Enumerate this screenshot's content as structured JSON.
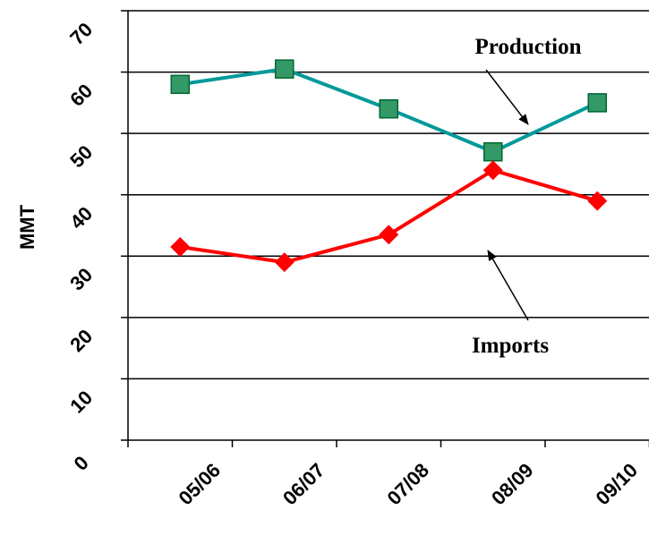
{
  "chart_data": {
    "type": "line",
    "title": "",
    "xlabel": "",
    "ylabel": "MMT",
    "categories": [
      "05/06",
      "06/07",
      "07/08",
      "08/09",
      "09/10"
    ],
    "ylim": [
      0,
      70
    ],
    "yticks": [
      "0",
      "10",
      "20",
      "30",
      "40",
      "50",
      "60",
      "70"
    ],
    "grid": true,
    "series": [
      {
        "name": "Production",
        "values": [
          58,
          60.5,
          54,
          47,
          55
        ],
        "color": "#009999",
        "marker": "square",
        "marker_color": "#339966"
      },
      {
        "name": "Imports",
        "values": [
          31.5,
          29,
          33.5,
          44,
          39
        ],
        "color": "#ff0000",
        "marker": "diamond",
        "marker_color": "#ff0000"
      }
    ],
    "annotations": [
      {
        "text": "Production",
        "points_to": "Production"
      },
      {
        "text": "Imports",
        "points_to": "Imports"
      }
    ]
  }
}
